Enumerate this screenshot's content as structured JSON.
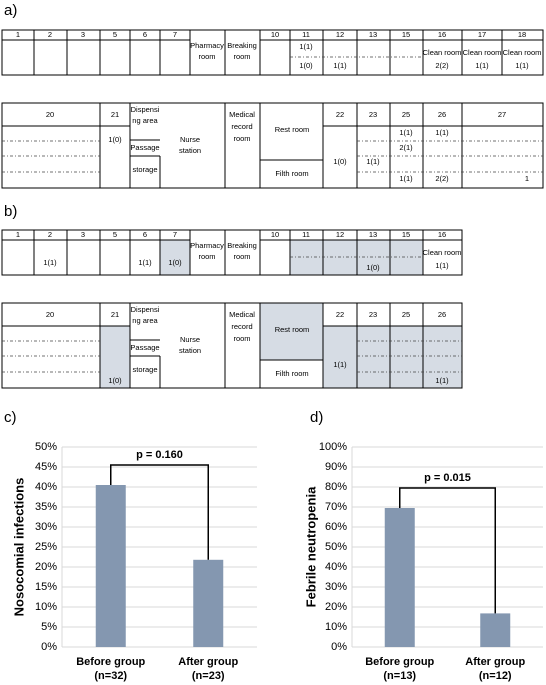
{
  "panel_labels": [
    "a)",
    "b)",
    "c)",
    "d)"
  ],
  "floor_plan_a": {
    "texts": [
      "1",
      "2",
      "3",
      "5",
      "6",
      "7",
      "10",
      "11",
      "12",
      "13",
      "15",
      "16",
      "17",
      "18",
      "Pharmacy",
      "room",
      "Breaking",
      "room",
      "1(1)",
      "1(0)",
      "1(1)",
      "Clean room",
      "2(2)",
      "Clean room",
      "1(1)",
      "Clean room",
      "1(1)",
      "20",
      "21",
      "Dispensi",
      "ng area",
      "Passage",
      "storage",
      "Nurse",
      "station",
      "Medical",
      "record",
      "room",
      "Rest room",
      "Filth room",
      "22",
      "23",
      "25",
      "26",
      "27",
      "1(0)",
      "1(0)",
      "1(1)",
      "1(1)",
      "2(1)",
      "1(1)",
      "1(1)",
      "2(2)",
      "1"
    ]
  },
  "floor_plan_b": {
    "texts": [
      "1",
      "2",
      "3",
      "5",
      "6",
      "7",
      "10",
      "11",
      "12",
      "13",
      "15",
      "16",
      "Pharmacy",
      "room",
      "Breaking",
      "room",
      "1(1)",
      "1(1)",
      "1(0)",
      "1(0)",
      "Clean room",
      "1(1)",
      "20",
      "21",
      "Dispensi",
      "ng area",
      "Passage",
      "storage",
      "Nurse",
      "station",
      "Medical",
      "record",
      "room",
      "Rest room",
      "Filth room",
      "22",
      "23",
      "25",
      "26",
      "1(0)",
      "1(1)",
      "1(1)"
    ]
  },
  "chart_data": [
    {
      "type": "bar",
      "ylabel": "Nosocomial infections",
      "categories": [
        "Before group",
        "After group"
      ],
      "category_sublabels": [
        "(n=32)",
        "(n=23)"
      ],
      "values": [
        40.5,
        21.8
      ],
      "color": "#8497b0",
      "annotation": "p = 0.160",
      "grid": true,
      "ylim": [
        0,
        50
      ],
      "yticks": [
        {
          "value": 0,
          "label": "0%"
        },
        {
          "value": 5,
          "label": "5%"
        },
        {
          "value": 10,
          "label": "10%"
        },
        {
          "value": 15,
          "label": "15%"
        },
        {
          "value": 20,
          "label": "20%"
        },
        {
          "value": 25,
          "label": "25%"
        },
        {
          "value": 30,
          "label": "30%"
        },
        {
          "value": 35,
          "label": "35%"
        },
        {
          "value": 40,
          "label": "40%"
        },
        {
          "value": 45,
          "label": "45%"
        },
        {
          "value": 50,
          "label": "50%"
        }
      ]
    },
    {
      "type": "bar",
      "ylabel": "Febrile neutropenia",
      "categories": [
        "Before group",
        "After group"
      ],
      "category_sublabels": [
        "(n=13)",
        "(n=12)"
      ],
      "values": [
        69.5,
        16.8
      ],
      "color": "#8497b0",
      "annotation": "p = 0.015",
      "grid": true,
      "ylim": [
        0,
        100
      ],
      "yticks": [
        {
          "value": 0,
          "label": "0%"
        },
        {
          "value": 10,
          "label": "10%"
        },
        {
          "value": 20,
          "label": "20%"
        },
        {
          "value": 30,
          "label": "30%"
        },
        {
          "value": 40,
          "label": "40%"
        },
        {
          "value": 50,
          "label": "50%"
        },
        {
          "value": 60,
          "label": "60%"
        },
        {
          "value": 70,
          "label": "70%"
        },
        {
          "value": 80,
          "label": "80%"
        },
        {
          "value": 90,
          "label": "90%"
        },
        {
          "value": 100,
          "label": "100%"
        }
      ]
    }
  ]
}
